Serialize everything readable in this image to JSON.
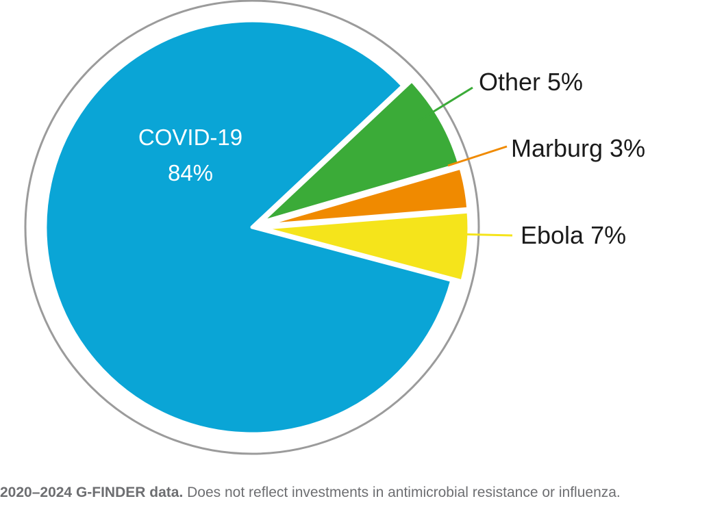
{
  "chart_data": {
    "type": "pie",
    "slices": [
      {
        "label": "COVID-19",
        "pct_text": "84%",
        "value": 84,
        "color": "#0aa5d6",
        "leader": "#0aa5d6"
      },
      {
        "label": "Other",
        "pct_text": "5%",
        "value": 5,
        "color": "#3bab38",
        "leader": "#3bab38"
      },
      {
        "label": "Marburg",
        "pct_text": "3%",
        "value": 3,
        "color": "#f08a00",
        "leader": "#f08a00"
      },
      {
        "label": "Ebola",
        "pct_text": "7%",
        "value": 7,
        "color": "#f5e41b",
        "leader": "#f5e41b"
      }
    ],
    "colors": {
      "outline": "#9b9b9b",
      "separator": "#ffffff"
    }
  },
  "labels": {
    "covid_name": "COVID-19",
    "covid_pct": "84%",
    "other": "Other 5%",
    "marburg": "Marburg 3%",
    "ebola": "Ebola 7%"
  },
  "footnote": {
    "source": "2020–2024 G-FINDER data.",
    "note": " Does not reflect investments in antimicrobial resistance or influenza."
  }
}
